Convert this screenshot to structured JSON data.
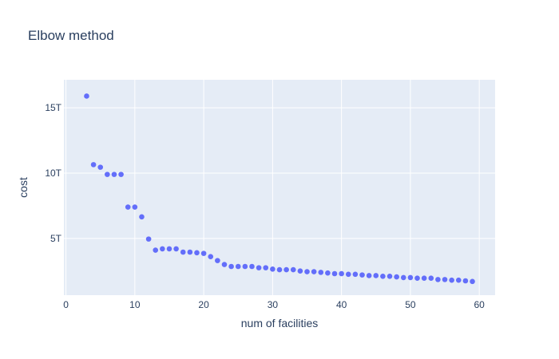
{
  "chart_data": {
    "type": "scatter",
    "title": "Elbow method",
    "xlabel": "num of facilities",
    "ylabel": "cost",
    "xlim": [
      -0.3,
      62.3
    ],
    "ylim": [
      0.65,
      17.15
    ],
    "x_ticks": [
      {
        "value": 0,
        "label": "0"
      },
      {
        "value": 10,
        "label": "10"
      },
      {
        "value": 20,
        "label": "20"
      },
      {
        "value": 30,
        "label": "30"
      },
      {
        "value": 40,
        "label": "40"
      },
      {
        "value": 50,
        "label": "50"
      },
      {
        "value": 60,
        "label": "60"
      }
    ],
    "y_ticks": [
      {
        "value": 5,
        "label": "5T"
      },
      {
        "value": 10,
        "label": "10T"
      },
      {
        "value": 15,
        "label": "15T"
      }
    ],
    "y_unit_note": "values in trillions",
    "grid": true,
    "legend": "none",
    "colors": {
      "marker": "#636efa",
      "plot_bg": "#e5ecf6",
      "grid": "#ffffff",
      "text": "#2a3f5f"
    },
    "x": [
      3,
      4,
      5,
      6,
      7,
      8,
      9,
      10,
      11,
      12,
      13,
      14,
      15,
      16,
      17,
      18,
      19,
      20,
      21,
      22,
      23,
      24,
      25,
      26,
      27,
      28,
      29,
      30,
      31,
      32,
      33,
      34,
      35,
      36,
      37,
      38,
      39,
      40,
      41,
      42,
      43,
      44,
      45,
      46,
      47,
      48,
      49,
      50,
      51,
      52,
      53,
      54,
      55,
      56,
      57,
      58,
      59
    ],
    "y": [
      15.9,
      10.65,
      10.45,
      9.9,
      9.9,
      9.9,
      7.4,
      7.4,
      6.65,
      4.95,
      4.1,
      4.2,
      4.2,
      4.2,
      3.95,
      3.95,
      3.9,
      3.85,
      3.6,
      3.3,
      3.0,
      2.85,
      2.85,
      2.85,
      2.85,
      2.75,
      2.75,
      2.65,
      2.6,
      2.6,
      2.6,
      2.5,
      2.45,
      2.45,
      2.4,
      2.35,
      2.3,
      2.3,
      2.25,
      2.25,
      2.2,
      2.15,
      2.15,
      2.1,
      2.1,
      2.05,
      2.0,
      2.0,
      1.95,
      1.95,
      1.95,
      1.85,
      1.85,
      1.8,
      1.8,
      1.75,
      1.7
    ]
  }
}
